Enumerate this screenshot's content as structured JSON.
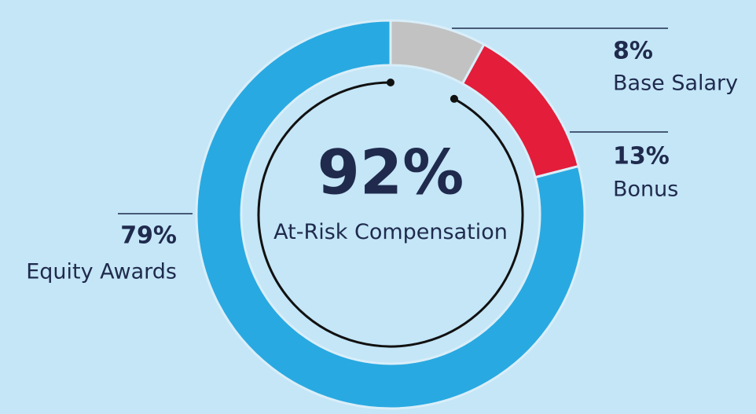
{
  "chart_data": {
    "type": "donut",
    "categories": [
      "Base Salary",
      "Bonus",
      "Equity Awards"
    ],
    "values": [
      8,
      13,
      79
    ],
    "value_labels": [
      "8%",
      "13%",
      "79%"
    ],
    "colors": [
      "#c2c2c2",
      "#e31d3a",
      "#29a9e1"
    ],
    "center_value": 92,
    "center_value_label": "92%",
    "center_caption": "At-Risk Compensation"
  }
}
